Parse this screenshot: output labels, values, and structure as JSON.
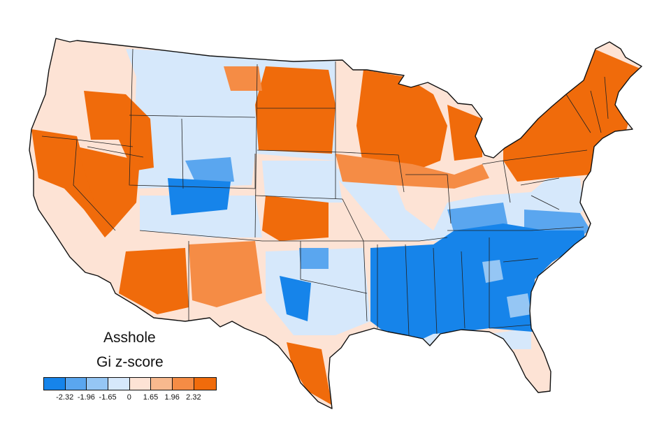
{
  "map": {
    "title": "Asshole",
    "subtitle": "Gi z-score",
    "legend": {
      "colors": [
        "#1684ea",
        "#5aa6ef",
        "#95c6f4",
        "#d6e8fb",
        "#fde3d5",
        "#f8b98e",
        "#f58c45",
        "#f06b0b"
      ],
      "ticks": [
        "-2.32",
        "-1.96",
        "-1.65",
        "0",
        "1.65",
        "1.96",
        "2.32"
      ]
    },
    "colors": {
      "hot_high": "#f06b0b",
      "hot_mid": "#f58c45",
      "warm_light": "#fde3d5",
      "cool_light": "#d6e8fb",
      "cold_mid": "#5aa6ef",
      "cold_high": "#1684ea",
      "border": "#222222"
    }
  }
}
